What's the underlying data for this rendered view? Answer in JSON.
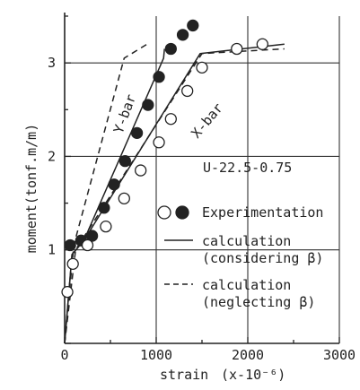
{
  "chart_data": {
    "type": "line",
    "specimen_label": "U-22.5-0.75",
    "xlabel": "strain",
    "xlabel_unit": "(x-10⁻⁶)",
    "ylabel": "moment(tonf.m/m)",
    "xlim": [
      0,
      3000
    ],
    "ylim": [
      0,
      3.5
    ],
    "x_ticks": [
      0,
      1000,
      2000,
      3000
    ],
    "x_tick_labels": [
      "0",
      "1000",
      "2000",
      "3000"
    ],
    "y_ticks": [
      1,
      2,
      3
    ],
    "y_tick_labels": [
      "1",
      "2",
      "3"
    ],
    "grid": true,
    "curve_labels": {
      "y_bar": "Y-bar",
      "x_bar": "X-bar"
    },
    "legend": {
      "placement": "lower-right",
      "experimentation": "Experimentation",
      "calc_considering_line1": "calculation",
      "calc_considering_line2": "(considering β)",
      "calc_neglecting_line1": "calculation",
      "calc_neglecting_line2": "(neglecting  β)"
    },
    "series": [
      {
        "name": "Y-bar",
        "kind": "experiment",
        "marker": "filled-circle",
        "points": [
          [
            60,
            1.05
          ],
          [
            180,
            1.1
          ],
          [
            300,
            1.15
          ],
          [
            430,
            1.45
          ],
          [
            540,
            1.7
          ],
          [
            660,
            1.95
          ],
          [
            790,
            2.25
          ],
          [
            910,
            2.55
          ],
          [
            1030,
            2.85
          ],
          [
            1160,
            3.15
          ],
          [
            1290,
            3.3
          ],
          [
            1400,
            3.4
          ]
        ]
      },
      {
        "name": "X-bar",
        "kind": "experiment",
        "marker": "open-circle",
        "points": [
          [
            30,
            0.55
          ],
          [
            90,
            0.85
          ],
          [
            250,
            1.05
          ],
          [
            450,
            1.25
          ],
          [
            650,
            1.55
          ],
          [
            830,
            1.85
          ],
          [
            1030,
            2.15
          ],
          [
            1160,
            2.4
          ],
          [
            1340,
            2.7
          ],
          [
            1500,
            2.95
          ],
          [
            1880,
            3.15
          ],
          [
            2160,
            3.2
          ]
        ]
      },
      {
        "name": "Y-bar",
        "kind": "calculation (considering β)",
        "style": "solid",
        "points": [
          [
            0,
            0
          ],
          [
            80,
            0.95
          ],
          [
            210,
            1.1
          ],
          [
            1080,
            3.05
          ],
          [
            1090,
            3.15
          ]
        ]
      },
      {
        "name": "X-bar",
        "kind": "calculation (considering β)",
        "style": "solid",
        "points": [
          [
            0,
            0
          ],
          [
            80,
            0.95
          ],
          [
            210,
            1.1
          ],
          [
            1480,
            3.1
          ],
          [
            2400,
            3.2
          ]
        ]
      },
      {
        "name": "Y-bar",
        "kind": "calculation (neglecting β)",
        "style": "dashed",
        "points": [
          [
            0,
            0
          ],
          [
            100,
            1.05
          ],
          [
            650,
            3.05
          ],
          [
            900,
            3.2
          ]
        ]
      },
      {
        "name": "X-bar",
        "kind": "calculation (neglecting β)",
        "style": "dashed",
        "points": [
          [
            0,
            0
          ],
          [
            120,
            1.0
          ],
          [
            1500,
            3.1
          ],
          [
            2400,
            3.15
          ]
        ]
      }
    ]
  }
}
